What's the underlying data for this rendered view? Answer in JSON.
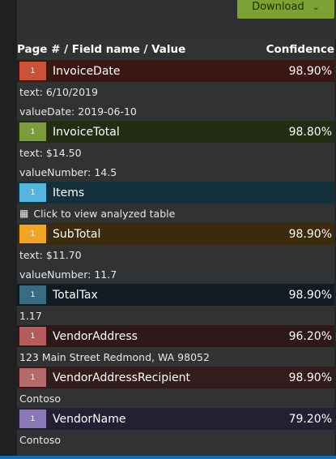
{
  "toolbar": {
    "download_label": "Download"
  },
  "header": {
    "field_col": "Page # / Field name / Value",
    "conf_col": "Confidence"
  },
  "fields": [
    {
      "page": "1",
      "name": "InvoiceDate",
      "confidence": "98.90%",
      "badge_color": "#c9523a",
      "row_color": "#3b1714",
      "details": [
        "text: 6/10/2019",
        "valueDate: 2019-06-10"
      ]
    },
    {
      "page": "1",
      "name": "InvoiceTotal",
      "confidence": "98.80%",
      "badge_color": "#7e9c3e",
      "row_color": "#222d13",
      "details": [
        "text: $14.50",
        "valueNumber: 14.5"
      ]
    },
    {
      "page": "1",
      "name": "Items",
      "confidence": "",
      "badge_color": "#59b3df",
      "row_color": "#14303b",
      "details": [],
      "table_link": "Click to view analyzed table"
    },
    {
      "page": "1",
      "name": "SubTotal",
      "confidence": "98.90%",
      "badge_color": "#f0a624",
      "row_color": "#3b2a0c",
      "details": [
        "text: $11.70",
        "valueNumber: 11.7"
      ]
    },
    {
      "page": "1",
      "name": "TotalTax",
      "confidence": "98.90%",
      "badge_color": "#3a6b84",
      "row_color": "#101c22",
      "details": [
        "1.17"
      ]
    },
    {
      "page": "1",
      "name": "VendorAddress",
      "confidence": "96.20%",
      "badge_color": "#b65b5b",
      "row_color": "#2f1818",
      "details": [
        "123 Main Street Redmond, WA 98052"
      ]
    },
    {
      "page": "1",
      "name": "VendorAddressRecipient",
      "confidence": "98.90%",
      "badge_color": "#b56a6a",
      "row_color": "#331c1c",
      "details": [
        "Contoso"
      ]
    },
    {
      "page": "1",
      "name": "VendorName",
      "confidence": "79.20%",
      "badge_color": "#8a78b8",
      "row_color": "#241f32",
      "details": [
        "Contoso"
      ]
    }
  ]
}
